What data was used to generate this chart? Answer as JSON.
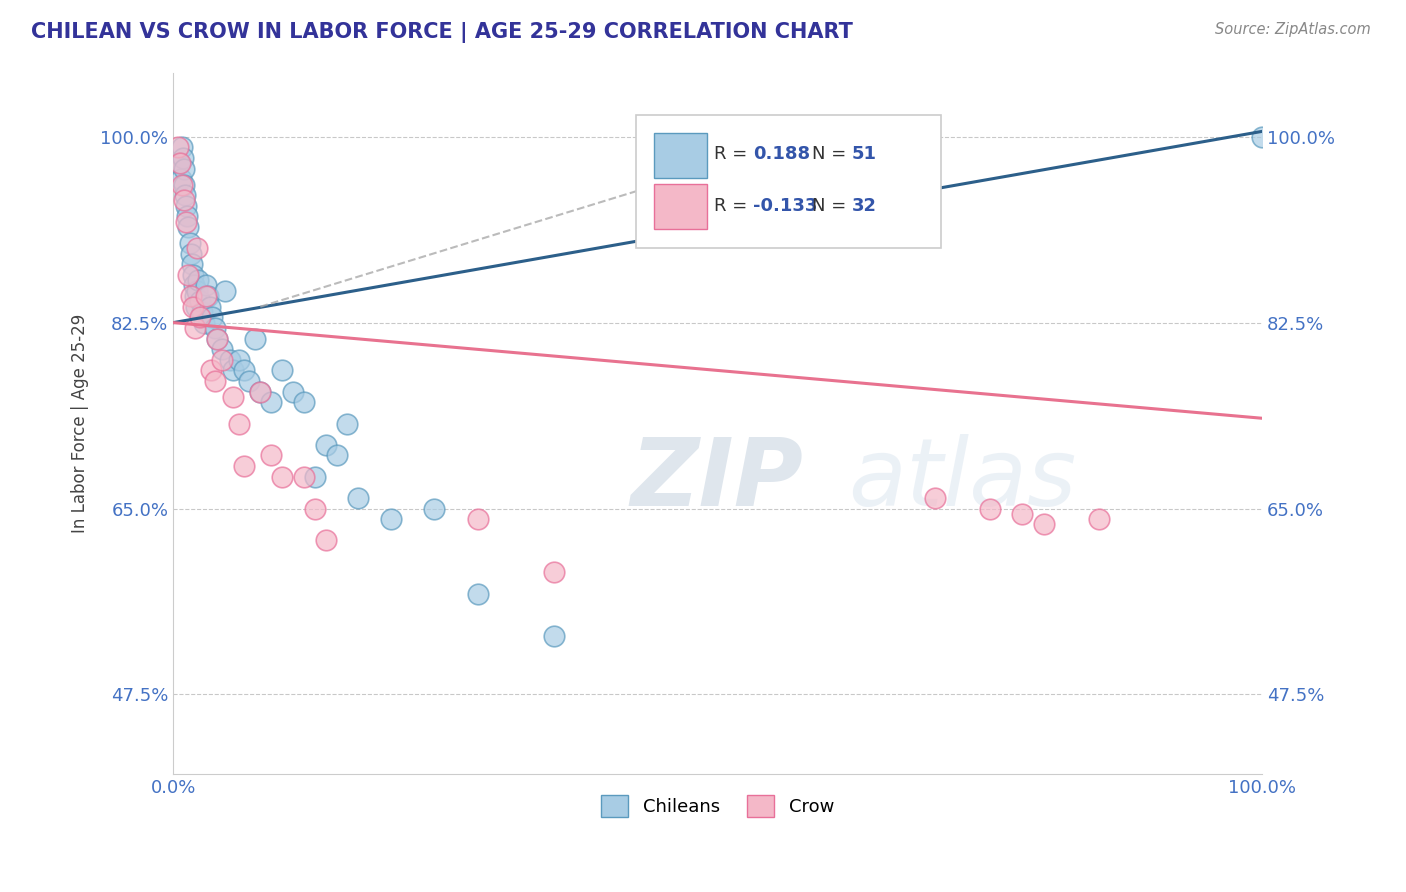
{
  "title": "CHILEAN VS CROW IN LABOR FORCE | AGE 25-29 CORRELATION CHART",
  "source_text": "Source: ZipAtlas.com",
  "ylabel": "In Labor Force | Age 25-29",
  "xlim": [
    0.0,
    1.0
  ],
  "ylim": [
    0.4,
    1.06
  ],
  "yticks": [
    0.475,
    0.65,
    0.825,
    1.0
  ],
  "ytick_labels": [
    "47.5%",
    "65.0%",
    "82.5%",
    "100.0%"
  ],
  "xticks": [
    0.0,
    0.25,
    0.5,
    0.75,
    1.0
  ],
  "xtick_labels": [
    "0.0%",
    "",
    "",
    "",
    "100.0%"
  ],
  "chilean_color": "#a8cce4",
  "crow_color": "#f4b8c8",
  "chilean_edge_color": "#5b9abe",
  "crow_edge_color": "#e87099",
  "chilean_line_color": "#2c5f8a",
  "crow_line_color": "#e8728f",
  "legend_R_chilean": "0.188",
  "legend_N_chilean": "51",
  "legend_R_crow": "-0.133",
  "legend_N_crow": "32",
  "watermark_zip": "ZIP",
  "watermark_atlas": "atlas",
  "background_color": "#ffffff",
  "chilean_x": [
    0.005,
    0.007,
    0.008,
    0.009,
    0.01,
    0.01,
    0.011,
    0.012,
    0.013,
    0.014,
    0.015,
    0.016,
    0.017,
    0.018,
    0.019,
    0.02,
    0.021,
    0.022,
    0.023,
    0.025,
    0.026,
    0.028,
    0.03,
    0.032,
    0.034,
    0.036,
    0.038,
    0.04,
    0.045,
    0.048,
    0.052,
    0.055,
    0.06,
    0.065,
    0.07,
    0.075,
    0.08,
    0.09,
    0.1,
    0.11,
    0.12,
    0.13,
    0.14,
    0.15,
    0.16,
    0.17,
    0.2,
    0.24,
    0.28,
    0.35,
    1.0
  ],
  "chilean_y": [
    0.975,
    0.96,
    0.99,
    0.98,
    0.97,
    0.955,
    0.945,
    0.935,
    0.925,
    0.915,
    0.9,
    0.89,
    0.88,
    0.87,
    0.86,
    0.85,
    0.84,
    0.855,
    0.865,
    0.845,
    0.835,
    0.825,
    0.86,
    0.85,
    0.84,
    0.83,
    0.82,
    0.81,
    0.8,
    0.855,
    0.79,
    0.78,
    0.79,
    0.78,
    0.77,
    0.81,
    0.76,
    0.75,
    0.78,
    0.76,
    0.75,
    0.68,
    0.71,
    0.7,
    0.73,
    0.66,
    0.64,
    0.65,
    0.57,
    0.53,
    1.0
  ],
  "crow_x": [
    0.004,
    0.006,
    0.008,
    0.01,
    0.012,
    0.014,
    0.016,
    0.018,
    0.02,
    0.022,
    0.025,
    0.03,
    0.035,
    0.038,
    0.04,
    0.045,
    0.055,
    0.06,
    0.065,
    0.08,
    0.09,
    0.1,
    0.12,
    0.13,
    0.14,
    0.28,
    0.35,
    0.7,
    0.75,
    0.78,
    0.8,
    0.85
  ],
  "crow_y": [
    0.99,
    0.975,
    0.955,
    0.94,
    0.92,
    0.87,
    0.85,
    0.84,
    0.82,
    0.895,
    0.83,
    0.85,
    0.78,
    0.77,
    0.81,
    0.79,
    0.755,
    0.73,
    0.69,
    0.76,
    0.7,
    0.68,
    0.68,
    0.65,
    0.62,
    0.64,
    0.59,
    0.66,
    0.65,
    0.645,
    0.635,
    0.64
  ]
}
